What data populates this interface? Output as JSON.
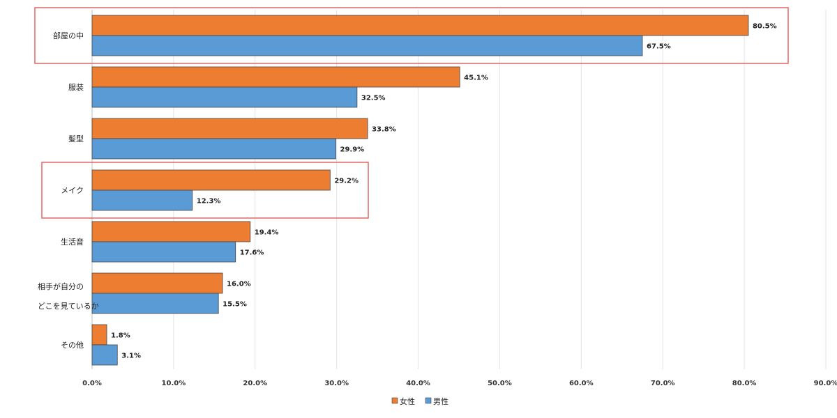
{
  "chart_data": {
    "type": "bar",
    "orientation": "horizontal",
    "categories": [
      "部屋の中",
      "服装",
      "髪型",
      "メイク",
      "生活音",
      "相手が自分の\nどこを見ているか",
      "その他"
    ],
    "series": [
      {
        "name": "女性",
        "values": [
          80.5,
          45.1,
          33.8,
          29.2,
          19.4,
          16.0,
          1.8
        ],
        "labels": [
          "80.5%",
          "45.1%",
          "33.8%",
          "29.2%",
          "19.4%",
          "16.0%",
          "1.8%"
        ],
        "color": "#ed7d31"
      },
      {
        "name": "男性",
        "values": [
          67.5,
          32.5,
          29.9,
          12.3,
          17.6,
          15.5,
          3.1
        ],
        "labels": [
          "67.5%",
          "32.5%",
          "29.9%",
          "12.3%",
          "17.6%",
          "15.5%",
          "3.1%"
        ],
        "color": "#5b9bd5"
      }
    ],
    "xlim": [
      0,
      90
    ],
    "ticks": [
      0,
      10,
      20,
      30,
      40,
      50,
      60,
      70,
      80,
      90
    ],
    "tick_labels": [
      "0.0%",
      "10.0%",
      "20.0%",
      "30.0%",
      "40.0%",
      "50.0%",
      "60.0%",
      "70.0%",
      "80.0%",
      "90.0%"
    ],
    "grid": true,
    "legend_position": "bottom",
    "highlighted_categories": [
      "部屋の中",
      "メイク"
    ],
    "highlight_color": "#e06666"
  }
}
